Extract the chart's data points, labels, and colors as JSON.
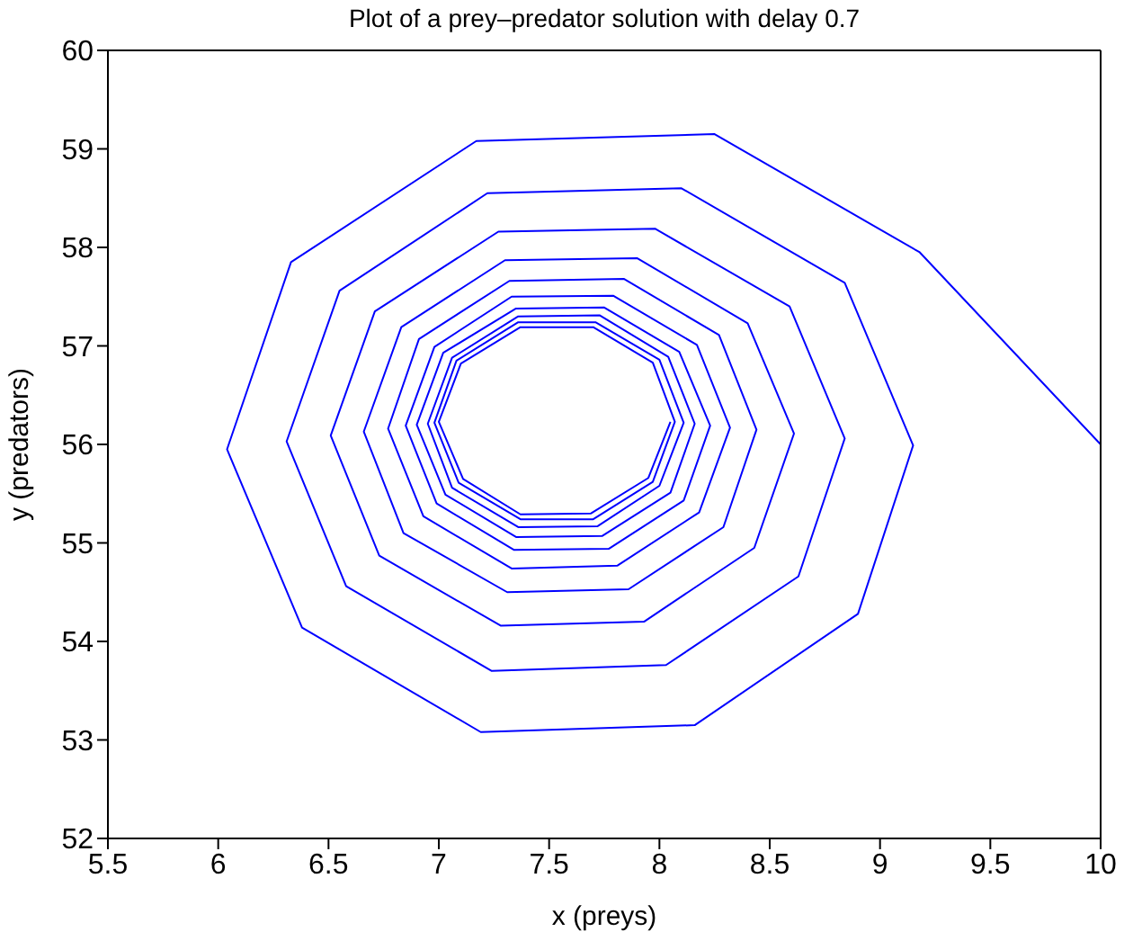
{
  "chart_data": {
    "type": "line",
    "title": "Plot of a prey–predator solution with delay 0.7",
    "xlabel": "x (preys)",
    "ylabel": "y (predators)",
    "xlim": [
      5.5,
      10
    ],
    "xticks": [
      5.5,
      6,
      6.5,
      7,
      7.5,
      8,
      8.5,
      9,
      9.5,
      10
    ],
    "ylim": [
      52,
      60
    ],
    "yticks": [
      52,
      53,
      54,
      55,
      56,
      57,
      58,
      59,
      60
    ],
    "marker": "none",
    "line_style": "solid",
    "series": [
      {
        "color": "#0000ff",
        "x": [
          10.0,
          9.18,
          8.25,
          7.17,
          6.33,
          6.04,
          6.38,
          7.19,
          8.16,
          8.9,
          9.15,
          8.84,
          8.1,
          7.22,
          6.55,
          6.31,
          6.58,
          7.24,
          8.03,
          8.63,
          8.84,
          8.59,
          7.98,
          7.27,
          6.71,
          6.51,
          6.73,
          7.28,
          7.93,
          8.43,
          8.61,
          8.4,
          7.9,
          7.3,
          6.83,
          6.66,
          6.84,
          7.31,
          7.86,
          8.29,
          8.44,
          8.27,
          7.84,
          7.32,
          6.91,
          6.77,
          6.93,
          7.33,
          7.81,
          8.18,
          8.32,
          8.17,
          7.79,
          7.33,
          6.98,
          6.85,
          6.99,
          7.34,
          7.77,
          8.11,
          8.23,
          8.09,
          7.75,
          7.35,
          7.02,
          6.9,
          7.03,
          7.35,
          7.74,
          8.05,
          8.16,
          8.04,
          7.73,
          7.36,
          7.06,
          6.95,
          7.06,
          7.36,
          7.72,
          8.0,
          8.11,
          8.0,
          7.71,
          7.36,
          7.08,
          6.98,
          7.09,
          7.37,
          7.7,
          7.97,
          8.07,
          7.97,
          7.7,
          7.37,
          7.1,
          7.0,
          7.11,
          7.37,
          7.69,
          7.95,
          8.05
        ],
        "values": [
          56.0,
          57.95,
          59.15,
          59.08,
          57.85,
          55.95,
          54.14,
          53.08,
          53.15,
          54.28,
          55.99,
          57.64,
          58.6,
          58.55,
          57.56,
          56.03,
          54.56,
          53.7,
          53.76,
          54.66,
          56.06,
          57.4,
          58.19,
          58.16,
          57.35,
          56.09,
          54.87,
          54.16,
          54.2,
          54.95,
          56.11,
          57.23,
          57.89,
          57.87,
          57.19,
          56.13,
          55.1,
          54.5,
          54.53,
          55.16,
          56.15,
          57.11,
          57.68,
          57.66,
          57.07,
          56.16,
          55.27,
          54.74,
          54.77,
          55.31,
          56.17,
          57.01,
          57.51,
          57.5,
          56.99,
          56.19,
          55.4,
          54.93,
          54.94,
          55.43,
          56.19,
          56.94,
          57.39,
          57.38,
          56.93,
          56.2,
          55.49,
          55.06,
          55.07,
          55.51,
          56.21,
          56.89,
          57.31,
          57.3,
          56.88,
          56.21,
          55.56,
          55.16,
          55.17,
          55.58,
          56.22,
          56.86,
          57.24,
          57.24,
          56.85,
          56.22,
          55.61,
          55.24,
          55.24,
          55.62,
          56.23,
          56.83,
          57.19,
          57.19,
          56.82,
          56.23,
          55.65,
          55.29,
          55.3,
          55.66,
          56.23
        ]
      }
    ]
  }
}
